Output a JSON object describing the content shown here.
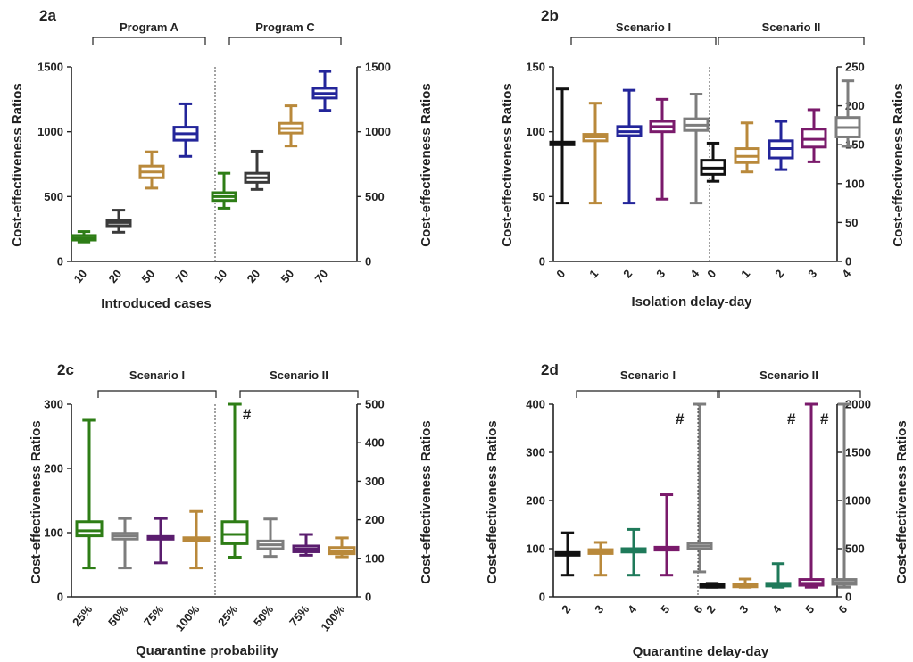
{
  "chart_data": [
    {
      "id": "2a",
      "type": "boxplot",
      "title": "2a",
      "xlabel": "Introduced cases",
      "ylabel_left": "Cost-effectiveness Ratios",
      "ylabel_right": "Cost-effectiveness Ratios",
      "groups": [
        {
          "label": "Program A",
          "ylim": [
            0,
            1500
          ],
          "ticks": [
            0,
            500,
            1000,
            1500
          ],
          "categories": [
            "10",
            "20",
            "50",
            "70"
          ],
          "boxes": [
            {
              "min": 150,
              "q1": 165,
              "median": 180,
              "q3": 200,
              "max": 230,
              "color": "#2e7d16"
            },
            {
              "min": 225,
              "q1": 275,
              "median": 300,
              "q3": 320,
              "max": 395,
              "color": "#3a3a3a"
            },
            {
              "min": 565,
              "q1": 645,
              "median": 690,
              "q3": 735,
              "max": 845,
              "color": "#b9893b"
            },
            {
              "min": 810,
              "q1": 935,
              "median": 985,
              "q3": 1035,
              "max": 1215,
              "color": "#23259a"
            }
          ]
        },
        {
          "label": "Program C",
          "ylim": [
            0,
            1500
          ],
          "ticks": [
            0,
            500,
            1000,
            1500
          ],
          "categories": [
            "10",
            "20",
            "50",
            "70"
          ],
          "boxes": [
            {
              "min": 410,
              "q1": 470,
              "median": 500,
              "q3": 530,
              "max": 680,
              "color": "#2e7d16"
            },
            {
              "min": 555,
              "q1": 610,
              "median": 645,
              "q3": 680,
              "max": 850,
              "color": "#3a3a3a"
            },
            {
              "min": 890,
              "q1": 990,
              "median": 1025,
              "q3": 1065,
              "max": 1200,
              "color": "#b9893b"
            },
            {
              "min": 1165,
              "q1": 1260,
              "median": 1295,
              "q3": 1335,
              "max": 1465,
              "color": "#23259a"
            }
          ]
        }
      ]
    },
    {
      "id": "2b",
      "type": "boxplot",
      "title": "2b",
      "xlabel": "Isolation delay-day",
      "ylabel_left": "Cost-effectiveness Ratios",
      "ylabel_right": "Cost-effectiveness Ratios",
      "groups": [
        {
          "label": "Scenario I",
          "ylim": [
            0,
            150
          ],
          "ticks": [
            0,
            50,
            100,
            150
          ],
          "categories": [
            "0",
            "1",
            "2",
            "3",
            "4"
          ],
          "boxes": [
            {
              "min": 45,
              "q1": 90,
              "median": 91,
              "q3": 92,
              "max": 133,
              "color": "#111111"
            },
            {
              "min": 45,
              "q1": 93,
              "median": 96,
              "q3": 98,
              "max": 122,
              "color": "#b9893b"
            },
            {
              "min": 45,
              "q1": 97,
              "median": 100,
              "q3": 104,
              "max": 132,
              "color": "#23259a"
            },
            {
              "min": 48,
              "q1": 100,
              "median": 104,
              "q3": 108,
              "max": 125,
              "color": "#7a1a6b"
            },
            {
              "min": 45,
              "q1": 101,
              "median": 105,
              "q3": 110,
              "max": 129,
              "color": "#7d7d7d"
            }
          ]
        },
        {
          "label": "Scenario II",
          "ylim": [
            0,
            250
          ],
          "ticks": [
            0,
            50,
            100,
            150,
            200,
            250
          ],
          "categories": [
            "0",
            "1",
            "2",
            "3",
            "4"
          ],
          "boxes": [
            {
              "min": 103,
              "q1": 112,
              "median": 120,
              "q3": 130,
              "max": 152,
              "color": "#111111"
            },
            {
              "min": 115,
              "q1": 127,
              "median": 135,
              "q3": 145,
              "max": 178,
              "color": "#b9893b"
            },
            {
              "min": 118,
              "q1": 133,
              "median": 145,
              "q3": 155,
              "max": 180,
              "color": "#23259a"
            },
            {
              "min": 128,
              "q1": 147,
              "median": 157,
              "q3": 170,
              "max": 195,
              "color": "#7a1a6b"
            },
            {
              "min": 148,
              "q1": 160,
              "median": 172,
              "q3": 185,
              "max": 232,
              "color": "#7d7d7d"
            }
          ]
        }
      ]
    },
    {
      "id": "2c",
      "type": "boxplot",
      "title": "2c",
      "xlabel": "Quarantine probability",
      "ylabel_left": "Cost-effectiveness Ratios",
      "ylabel_right": "Cost-effectiveness Ratios",
      "groups": [
        {
          "label": "Scenario I",
          "ylim": [
            0,
            300
          ],
          "ticks": [
            0,
            100,
            200,
            300
          ],
          "categories": [
            "25%",
            "50%",
            "75%",
            "100%"
          ],
          "boxes": [
            {
              "min": 45,
              "q1": 95,
              "median": 103,
              "q3": 117,
              "max": 275,
              "color": "#2e7d16"
            },
            {
              "min": 45,
              "q1": 90,
              "median": 95,
              "q3": 99,
              "max": 122,
              "color": "#7d7d7d"
            },
            {
              "min": 53,
              "q1": 90,
              "median": 92,
              "q3": 94,
              "max": 122,
              "color": "#5a1d6e"
            },
            {
              "min": 45,
              "q1": 90,
              "median": 91,
              "q3": 92,
              "max": 133,
              "color": "#b9893b"
            }
          ]
        },
        {
          "label": "Scenario II",
          "ylim": [
            0,
            500
          ],
          "ticks": [
            0,
            100,
            200,
            300,
            400,
            500
          ],
          "categories": [
            "25%",
            "50%",
            "75%",
            "100%"
          ],
          "boxes": [
            {
              "min": 103,
              "q1": 138,
              "median": 162,
              "q3": 195,
              "max": 500,
              "color": "#2e7d16",
              "marker": "#"
            },
            {
              "min": 105,
              "q1": 125,
              "median": 135,
              "q3": 145,
              "max": 202,
              "color": "#7d7d7d"
            },
            {
              "min": 108,
              "q1": 117,
              "median": 124,
              "q3": 132,
              "max": 162,
              "color": "#5a1d6e"
            },
            {
              "min": 104,
              "q1": 112,
              "median": 118,
              "q3": 128,
              "max": 153,
              "color": "#b9893b"
            }
          ]
        }
      ]
    },
    {
      "id": "2d",
      "type": "boxplot",
      "title": "2d",
      "xlabel": "Quarantine delay-day",
      "ylabel_left": "Cost-effectiveness Ratios",
      "ylabel_right": "Cost-effectiveness Ratios",
      "groups": [
        {
          "label": "Scenario I",
          "ylim": [
            0,
            400
          ],
          "ticks": [
            0,
            100,
            200,
            300,
            400
          ],
          "categories": [
            "2",
            "3",
            "4",
            "5",
            "6"
          ],
          "boxes": [
            {
              "min": 45,
              "q1": 88,
              "median": 90,
              "q3": 92,
              "max": 133,
              "color": "#111111"
            },
            {
              "min": 45,
              "q1": 90,
              "median": 95,
              "q3": 98,
              "max": 113,
              "color": "#b9893b"
            },
            {
              "min": 45,
              "q1": 93,
              "median": 97,
              "q3": 100,
              "max": 140,
              "color": "#1f7a5a"
            },
            {
              "min": 45,
              "q1": 97,
              "median": 100,
              "q3": 103,
              "max": 212,
              "color": "#7a1a6b"
            },
            {
              "min": 52,
              "q1": 100,
              "median": 106,
              "q3": 112,
              "max": 400,
              "color": "#7d7d7d",
              "marker": "#"
            }
          ]
        },
        {
          "label": "Scenario II",
          "ylim": [
            0,
            2000
          ],
          "ticks": [
            0,
            500,
            1000,
            1500,
            2000
          ],
          "categories": [
            "2",
            "3",
            "4",
            "5",
            "6"
          ],
          "boxes": [
            {
              "min": 100,
              "q1": 112,
              "median": 120,
              "q3": 128,
              "max": 140,
              "color": "#111111"
            },
            {
              "min": 100,
              "q1": 112,
              "median": 122,
              "q3": 132,
              "max": 185,
              "color": "#b9893b"
            },
            {
              "min": 100,
              "q1": 118,
              "median": 128,
              "q3": 140,
              "max": 345,
              "color": "#1f7a5a"
            },
            {
              "min": 100,
              "q1": 120,
              "median": 140,
              "q3": 180,
              "max": 2000,
              "color": "#7a1a6b",
              "marker": "#"
            },
            {
              "min": 100,
              "q1": 130,
              "median": 150,
              "q3": 180,
              "max": 2000,
              "color": "#7d7d7d",
              "marker": "#"
            }
          ]
        }
      ]
    }
  ]
}
